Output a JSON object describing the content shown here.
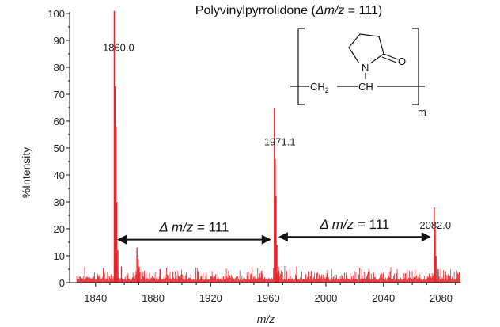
{
  "chart_data": {
    "type": "line",
    "title_main": "Polyvinylpyrrolidone (",
    "title_delta": "Δ",
    "title_mz": "m/z",
    "title_eq": " = 111)",
    "xlabel": "m/z",
    "ylabel": "%Intensity",
    "xlim": [
      1822,
      2094
    ],
    "ylim": [
      0,
      100
    ],
    "x_ticks": [
      1840,
      1880,
      1920,
      1960,
      2000,
      2040,
      2080
    ],
    "y_ticks": [
      0,
      10,
      20,
      30,
      40,
      50,
      60,
      70,
      80,
      90,
      100
    ],
    "series_color": "#e8262b",
    "peaks": [
      {
        "x": 1853.0,
        "height": 101
      },
      {
        "x": 1853.6,
        "height": 73
      },
      {
        "x": 1854.2,
        "height": 58
      },
      {
        "x": 1854.8,
        "height": 30
      },
      {
        "x": 1855.5,
        "height": 12
      },
      {
        "x": 1858.0,
        "height": 6
      },
      {
        "x": 1868.8,
        "height": 13
      },
      {
        "x": 1869.6,
        "height": 9
      },
      {
        "x": 1870.3,
        "height": 6
      },
      {
        "x": 1884.8,
        "height": 5
      },
      {
        "x": 1964.2,
        "height": 65
      },
      {
        "x": 1964.8,
        "height": 46
      },
      {
        "x": 1965.4,
        "height": 32
      },
      {
        "x": 1966.0,
        "height": 14
      },
      {
        "x": 1967.0,
        "height": 6
      },
      {
        "x": 1979.8,
        "height": 6
      },
      {
        "x": 2075.3,
        "height": 28
      },
      {
        "x": 2075.9,
        "height": 20
      },
      {
        "x": 2076.5,
        "height": 10
      },
      {
        "x": 2078.0,
        "height": 5
      }
    ],
    "annotations": {
      "peak_labels": [
        {
          "text": "1860.0",
          "x": 1856,
          "y": 86
        },
        {
          "text": "1971.1",
          "x": 1968,
          "y": 51
        },
        {
          "text": "2082.0",
          "x": 2076,
          "y": 20
        }
      ],
      "delta_arrows": [
        {
          "from": 1855,
          "to": 1962,
          "y": 16,
          "label_delta": "Δ",
          "label_mz": "m/z",
          "label_eq": " = 111"
        },
        {
          "from": 1967,
          "to": 2073,
          "y": 17,
          "label_delta": "Δ",
          "label_mz": "m/z",
          "label_eq": " = 111"
        }
      ]
    },
    "structure": {
      "N": "N",
      "O": "O",
      "CH2": "CH",
      "CH2_sub": "2",
      "CH": "CH",
      "m": "m"
    }
  }
}
